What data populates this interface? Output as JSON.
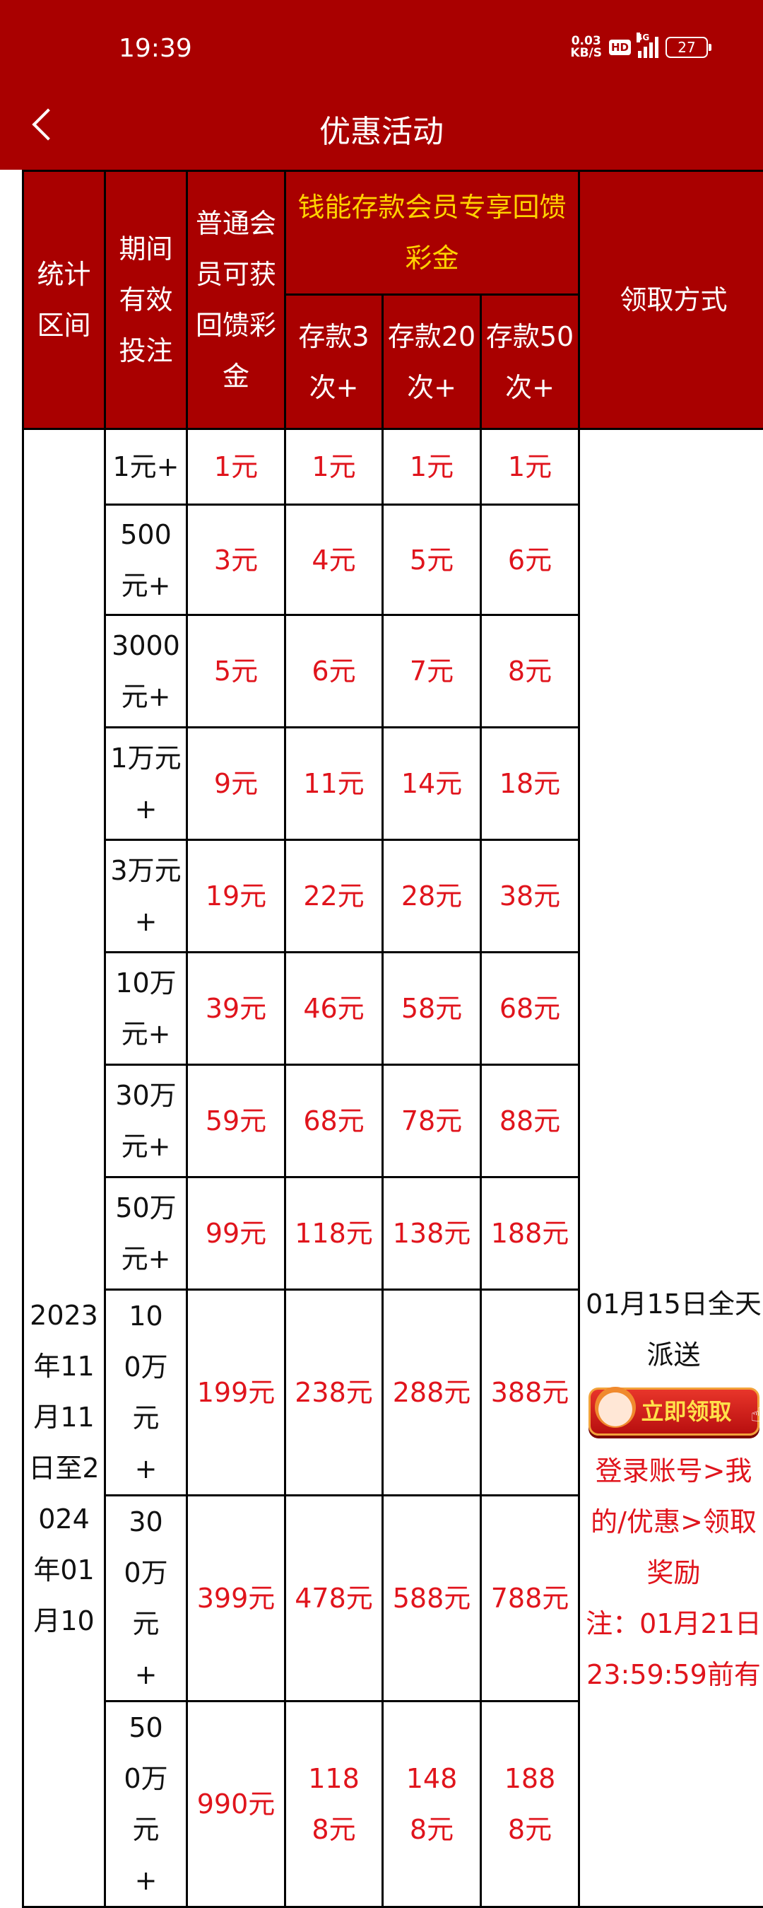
{
  "status_bar": {
    "time": "19:39",
    "speed_value": "0.03",
    "speed_unit": "KB/S",
    "hd": "HD",
    "network": "4G",
    "battery": "27"
  },
  "header": {
    "title": "优惠活动"
  },
  "colors": {
    "header_bg": "#a90000",
    "highlight_text": "#ffd200",
    "value_text": "#e0141c"
  },
  "table": {
    "headers": {
      "period": "统计区间",
      "bet": "期间有效投注",
      "normal": "普通会员可获回馈彩金",
      "vip_group": "钱能存款会员专享回馈彩金",
      "deposit_3": "存款3次+",
      "deposit_20": "存款20次+",
      "deposit_50": "存款50次+",
      "claim": "领取方式"
    },
    "period_text": "2023年11月11日至2024年01月10",
    "rows": [
      [
        "1元+",
        "1元",
        "1元",
        "1元",
        "1元"
      ],
      [
        "500元+",
        "3元",
        "4元",
        "5元",
        "6元"
      ],
      [
        "3000元+",
        "5元",
        "6元",
        "7元",
        "8元"
      ],
      [
        "1万元+",
        "9元",
        "11元",
        "14元",
        "18元"
      ],
      [
        "3万元+",
        "19元",
        "22元",
        "28元",
        "38元"
      ],
      [
        "10万元+",
        "39元",
        "46元",
        "58元",
        "68元"
      ],
      [
        "30万元+",
        "59元",
        "68元",
        "78元",
        "88元"
      ],
      [
        "50万元+",
        "99元",
        "118元",
        "138元",
        "188元"
      ],
      [
        "100万元+",
        "199元",
        "238元",
        "288元",
        "388元"
      ],
      [
        "300万元+",
        "399元",
        "478元",
        "588元",
        "788元"
      ],
      [
        "500万元+",
        "990元",
        "1188元",
        "1488元",
        "1888元"
      ]
    ],
    "claim": {
      "schedule": "01月15日全天派送",
      "button_label": "立即领取",
      "instructions": "登录账号>我的/优惠>领取奖励",
      "note": "注：01月21日23:59:59前有"
    }
  }
}
